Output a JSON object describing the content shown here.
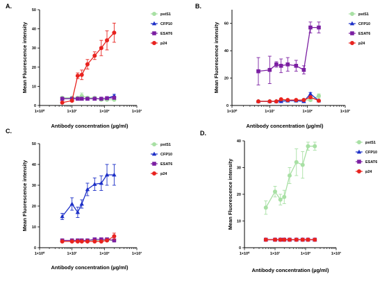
{
  "figure": {
    "panel_labels": [
      "A.",
      "B.",
      "C.",
      "D."
    ]
  },
  "chart_data": [
    {
      "panel": "A.",
      "type": "line",
      "xlabel": "Antibody concentration (µg/ml)",
      "ylabel": "Mean Fluorescence intensity",
      "xscale": "log",
      "xlim": [
        1,
        1000
      ],
      "ylim": [
        0,
        50
      ],
      "x_ticks": [
        "1×10⁰",
        "1×10¹",
        "1×10²",
        "1×10³"
      ],
      "y_ticks": [
        0,
        10,
        20,
        30,
        40,
        50
      ],
      "legend": "top-right",
      "x": [
        5,
        10,
        15,
        20,
        30,
        50,
        80,
        120,
        200
      ],
      "series": [
        {
          "name": "pstS1",
          "color": "#a8e0a4",
          "marker": "circle",
          "y": [
            4,
            4,
            4,
            5,
            4,
            4,
            3,
            3,
            3
          ],
          "err": [
            0.5,
            0.5,
            0.5,
            1.5,
            0.5,
            0.5,
            0.5,
            0.5,
            0.5
          ]
        },
        {
          "name": "CFP10",
          "color": "#1c2fc7",
          "marker": "triangle",
          "y": [
            3.5,
            3.5,
            3.5,
            3.5,
            3.5,
            3.5,
            3.5,
            3.8,
            5
          ],
          "err": [
            0.5,
            0.5,
            0.5,
            0.5,
            0.5,
            0.5,
            0.5,
            0.5,
            0.8
          ]
        },
        {
          "name": "ESAT6",
          "color": "#7b1fa2",
          "marker": "square",
          "y": [
            3.5,
            3.5,
            3.5,
            3.5,
            3.5,
            3.5,
            3.5,
            3.8,
            4
          ],
          "err": [
            0.4,
            0.4,
            0.4,
            0.4,
            0.4,
            0.4,
            0.4,
            0.4,
            0.4
          ]
        },
        {
          "name": "p24",
          "color": "#e8231f",
          "marker": "circle",
          "y": [
            1.5,
            2.5,
            15.5,
            16,
            21.5,
            26,
            30,
            34,
            38
          ],
          "err": [
            0.5,
            0.5,
            1.5,
            2.5,
            2.5,
            2,
            4,
            5,
            5
          ]
        }
      ]
    },
    {
      "panel": "B.",
      "type": "line",
      "xlabel": "Antibody concentration (µg/ml)",
      "ylabel": "Mean Fluorescence intensity",
      "xscale": "log",
      "xlim": [
        1,
        1000
      ],
      "ylim": [
        0,
        70
      ],
      "x_ticks": [
        "1×10⁰",
        "1×10¹",
        "1×10²",
        "1×10³"
      ],
      "y_ticks": [
        0,
        20,
        40,
        60
      ],
      "legend": "top-right",
      "x": [
        5,
        10,
        15,
        20,
        30,
        50,
        80,
        120,
        200
      ],
      "series": [
        {
          "name": "pstS1",
          "color": "#a8e0a4",
          "marker": "circle",
          "y": [
            3,
            3,
            3,
            4,
            3.5,
            3.5,
            4,
            4,
            7
          ],
          "err": [
            0.5,
            0.5,
            0.5,
            1,
            0.5,
            0.5,
            1,
            1,
            1.5
          ]
        },
        {
          "name": "CFP10",
          "color": "#1c2fc7",
          "marker": "triangle",
          "y": [
            3,
            3,
            3,
            3,
            3.5,
            3.5,
            3,
            8.5,
            3.5
          ],
          "err": [
            0.5,
            0.5,
            0.5,
            0.5,
            0.5,
            0.5,
            0.5,
            1,
            0.5
          ]
        },
        {
          "name": "ESAT6",
          "color": "#7b1fa2",
          "marker": "square",
          "y": [
            25,
            26,
            30,
            29,
            30,
            29,
            26,
            57,
            57
          ],
          "err": [
            10,
            10,
            2,
            5,
            5,
            4,
            3,
            4,
            4
          ]
        },
        {
          "name": "p24",
          "color": "#e8231f",
          "marker": "circle",
          "y": [
            3,
            3,
            3,
            4.5,
            4,
            4,
            4,
            6,
            3.5
          ],
          "err": [
            0.5,
            0.5,
            0.5,
            0.5,
            0.5,
            0.5,
            0.5,
            1,
            0.5
          ]
        }
      ]
    },
    {
      "panel": "C.",
      "type": "line",
      "xlabel": "Antibody concentration (µg/ml)",
      "ylabel": "Mean Fluorescence intensity",
      "xscale": "log",
      "xlim": [
        1,
        1000
      ],
      "ylim": [
        0,
        50
      ],
      "x_ticks": [
        "1×10⁰",
        "1×10¹",
        "1×10²",
        "1×10³"
      ],
      "y_ticks": [
        0,
        10,
        20,
        30,
        40,
        50
      ],
      "legend": "top-right",
      "x": [
        5,
        10,
        15,
        20,
        30,
        50,
        80,
        120,
        200
      ],
      "series": [
        {
          "name": "pstS1",
          "color": "#a8e0a4",
          "marker": "circle",
          "y": [
            3.5,
            3.5,
            3.5,
            3.5,
            3.5,
            3.5,
            3.5,
            3.5,
            3.5
          ],
          "err": [
            0.3,
            0.3,
            0.3,
            0.3,
            0.3,
            0.3,
            0.3,
            0.3,
            0.3
          ]
        },
        {
          "name": "CFP10",
          "color": "#1c2fc7",
          "marker": "triangle",
          "y": [
            15,
            21,
            17,
            21,
            28,
            30.5,
            31,
            35,
            35
          ],
          "err": [
            1.5,
            3,
            2.5,
            2,
            3,
            3,
            3.5,
            5,
            5
          ]
        },
        {
          "name": "ESAT6",
          "color": "#7b1fa2",
          "marker": "square",
          "y": [
            3.5,
            3.5,
            3.5,
            3.5,
            3.5,
            4,
            4,
            4,
            3.5
          ],
          "err": [
            0.3,
            0.3,
            0.3,
            0.3,
            0.3,
            0.3,
            0.3,
            0.3,
            0.3
          ]
        },
        {
          "name": "p24",
          "color": "#e8231f",
          "marker": "circle",
          "y": [
            3,
            3,
            3,
            3,
            3,
            3,
            3,
            3.5,
            5.5
          ],
          "err": [
            0.3,
            0.3,
            0.3,
            0.3,
            0.3,
            0.3,
            0.3,
            0.5,
            1.5
          ]
        }
      ]
    },
    {
      "panel": "D.",
      "type": "line",
      "xlabel": "Antibody concentration (µg/ml)",
      "ylabel": "Mean Fluorescence intensity",
      "xscale": "log",
      "xlim": [
        1,
        1000
      ],
      "ylim": [
        0,
        40
      ],
      "x_ticks": [
        "1×10⁰",
        "1×10¹",
        "1×10²",
        "1×10³"
      ],
      "y_ticks": [
        0,
        10,
        20,
        30,
        40
      ],
      "legend": "top-right",
      "x": [
        5,
        10,
        15,
        20,
        30,
        50,
        80,
        120,
        200
      ],
      "series": [
        {
          "name": "pstS1",
          "color": "#a8e0a4",
          "marker": "circle",
          "y": [
            15,
            21,
            18,
            19,
            27,
            32,
            31,
            38,
            38
          ],
          "err": [
            2.5,
            2,
            2,
            2.5,
            3,
            5,
            5,
            1.5,
            1.5
          ]
        },
        {
          "name": "CFP10",
          "color": "#1c2fc7",
          "marker": "triangle",
          "y": [
            3,
            3,
            3,
            3,
            3,
            3,
            3,
            3,
            3
          ],
          "err": [
            0.2,
            0.2,
            0.2,
            0.2,
            0.2,
            0.2,
            0.2,
            0.2,
            0.2
          ]
        },
        {
          "name": "ESAT6",
          "color": "#7b1fa2",
          "marker": "square",
          "y": [
            3,
            3,
            3,
            3,
            3,
            3,
            3,
            3,
            3
          ],
          "err": [
            0.2,
            0.2,
            0.2,
            0.2,
            0.2,
            0.2,
            0.2,
            0.2,
            0.2
          ]
        },
        {
          "name": "p24",
          "color": "#e8231f",
          "marker": "circle",
          "y": [
            3,
            3,
            3,
            3,
            3,
            3,
            3,
            3,
            3
          ],
          "err": [
            0.2,
            0.2,
            0.2,
            0.2,
            0.2,
            0.2,
            0.2,
            0.2,
            0.2
          ]
        }
      ]
    }
  ]
}
